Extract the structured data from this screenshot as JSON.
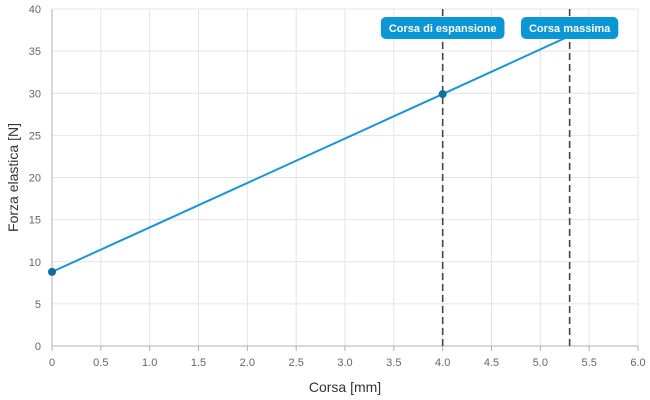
{
  "chart_data": {
    "type": "line",
    "xlabel": "Corsa [mm]",
    "ylabel": "Forza elastica [N]",
    "xlim": [
      0,
      6
    ],
    "ylim": [
      0,
      40
    ],
    "x_ticks": [
      "0",
      "0.5",
      "1.0",
      "1.5",
      "2.0",
      "2.5",
      "3.0",
      "3.5",
      "4.0",
      "4.5",
      "5.0",
      "5.5",
      "6.0"
    ],
    "y_ticks": [
      "0",
      "5",
      "10",
      "15",
      "20",
      "25",
      "30",
      "35",
      "40"
    ],
    "grid": true,
    "series": [
      {
        "color": "#1a96d4",
        "points": [
          {
            "x": 0,
            "y": 8.8
          },
          {
            "x": 4.0,
            "y": 29.9
          },
          {
            "x": 5.3,
            "y": 36.8
          }
        ],
        "markers": [
          {
            "x": 0,
            "y": 8.8
          },
          {
            "x": 4.0,
            "y": 29.9
          }
        ]
      }
    ],
    "reference_lines": [
      {
        "x": 4.0,
        "label": "Corsa di espansione",
        "color": "#0b96d6"
      },
      {
        "x": 5.3,
        "label": "Corsa massima",
        "color": "#0b96d6"
      }
    ]
  }
}
